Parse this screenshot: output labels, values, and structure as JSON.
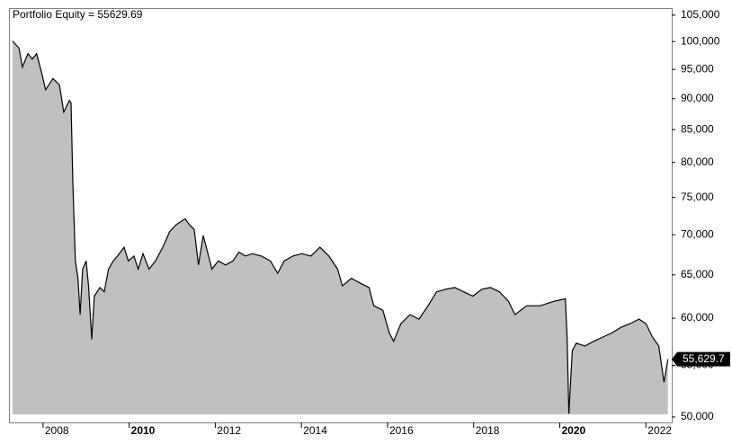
{
  "chart_data": {
    "type": "area",
    "title": "Portfolio Equity = 55629.69",
    "log_scale": true,
    "fill": "#c0c0c0",
    "line_color": "#000000",
    "xlim": [
      2007.23,
      2022.6
    ],
    "xticks": [
      2008,
      2010,
      2012,
      2014,
      2016,
      2018,
      2020,
      2022
    ],
    "ylim": [
      49500,
      106200
    ],
    "yticks": [
      {
        "value": 50000,
        "label": "50,000"
      },
      {
        "value": 55000,
        "label": "55,000"
      },
      {
        "value": 60000,
        "label": "60,000"
      },
      {
        "value": 65000,
        "label": "65,000"
      },
      {
        "value": 70000,
        "label": "70,000"
      },
      {
        "value": 75000,
        "label": "75,000"
      },
      {
        "value": 80000,
        "label": "80,000"
      },
      {
        "value": 85000,
        "label": "85,000"
      },
      {
        "value": 90000,
        "label": "90,000"
      },
      {
        "value": 95000,
        "label": "95,000"
      },
      {
        "value": 100000,
        "label": "100,000"
      },
      {
        "value": 105000,
        "label": "105,000"
      }
    ],
    "current_value": 55629.69,
    "current_label": "55,629.7",
    "x": [
      2007.29,
      2007.44,
      2007.52,
      2007.65,
      2007.75,
      2007.85,
      2007.96,
      2008.06,
      2008.23,
      2008.38,
      2008.48,
      2008.61,
      2008.65,
      2008.69,
      2008.75,
      2008.81,
      2008.86,
      2008.92,
      2009.0,
      2009.06,
      2009.13,
      2009.19,
      2009.32,
      2009.42,
      2009.52,
      2009.63,
      2009.73,
      2009.88,
      2009.98,
      2010.11,
      2010.21,
      2010.32,
      2010.46,
      2010.61,
      2010.78,
      2010.94,
      2011.09,
      2011.3,
      2011.4,
      2011.51,
      2011.61,
      2011.72,
      2011.82,
      2011.92,
      2012.07,
      2012.24,
      2012.41,
      2012.55,
      2012.7,
      2012.86,
      2013.07,
      2013.28,
      2013.45,
      2013.6,
      2013.8,
      2014.01,
      2014.22,
      2014.43,
      2014.64,
      2014.84,
      2014.95,
      2015.16,
      2015.37,
      2015.57,
      2015.68,
      2015.89,
      2016.04,
      2016.14,
      2016.31,
      2016.52,
      2016.73,
      2016.94,
      2017.14,
      2017.35,
      2017.56,
      2017.77,
      2017.98,
      2018.19,
      2018.39,
      2018.6,
      2018.81,
      2018.96,
      2019.23,
      2019.54,
      2019.86,
      2020.13,
      2020.17,
      2020.21,
      2020.29,
      2020.38,
      2020.58,
      2020.79,
      2021.0,
      2021.21,
      2021.42,
      2021.63,
      2021.84,
      2022.0,
      2022.15,
      2022.3,
      2022.42,
      2022.51
    ],
    "values": [
      100100,
      98800,
      95400,
      97800,
      96800,
      97800,
      94600,
      91500,
      93400,
      92300,
      87800,
      89700,
      89300,
      77500,
      66700,
      64600,
      60400,
      65700,
      66700,
      63500,
      57700,
      62500,
      63500,
      63000,
      65700,
      66700,
      67300,
      68400,
      66700,
      67300,
      65700,
      67600,
      65700,
      66700,
      68400,
      70400,
      71300,
      72100,
      71300,
      70700,
      66200,
      69900,
      67800,
      65700,
      66700,
      66200,
      66700,
      67800,
      67300,
      67600,
      67300,
      66700,
      65200,
      66700,
      67300,
      67600,
      67300,
      68400,
      67300,
      65700,
      63700,
      64600,
      64000,
      63500,
      61400,
      60900,
      58400,
      57500,
      59400,
      60400,
      59900,
      61400,
      63000,
      63300,
      63500,
      63000,
      62500,
      63300,
      63500,
      63000,
      61900,
      60400,
      61400,
      61400,
      61900,
      62200,
      57950,
      50300,
      56500,
      57300,
      57000,
      57500,
      57950,
      58400,
      59000,
      59400,
      59900,
      59400,
      57950,
      57000,
      53300,
      55629.69
    ]
  }
}
